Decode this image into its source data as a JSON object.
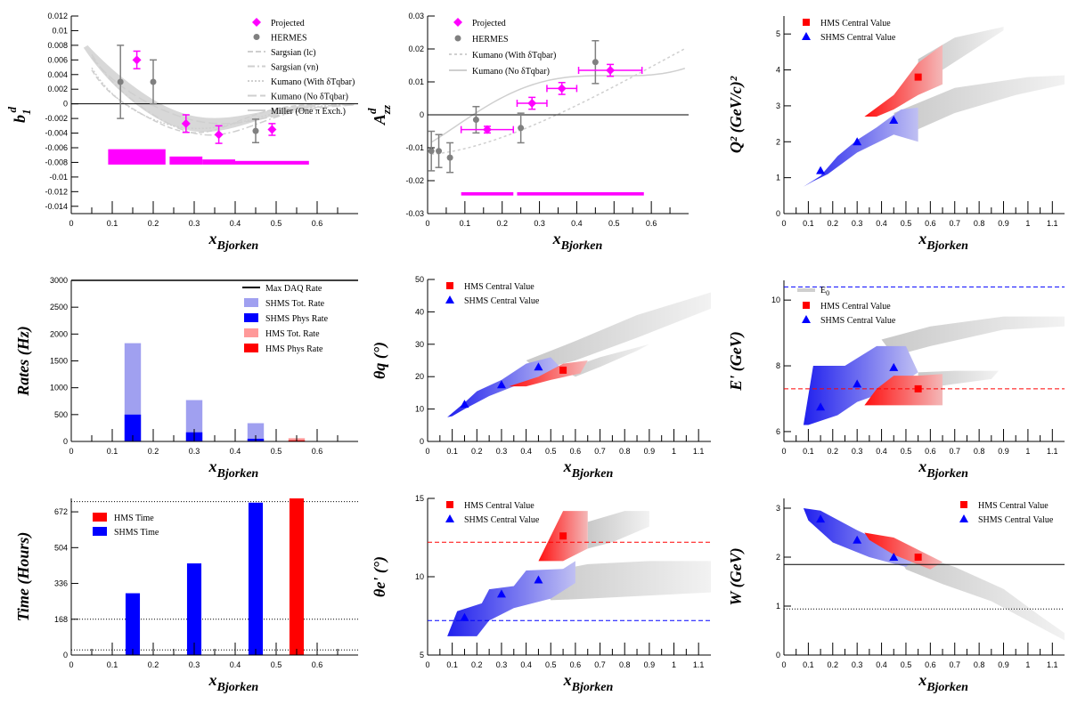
{
  "colors": {
    "projected": "#ff00ff",
    "hermes": "#808080",
    "model": "#cfcfcf",
    "hms": "#ff0000",
    "shms": "#0000ff",
    "hms_light": "#ff9999",
    "shms_light": "#a0a0f0",
    "band": "#d8d8d8"
  },
  "chart_data": [
    {
      "id": "b1d",
      "type": "scatter",
      "xlabel_main": "x",
      "xlabel_sub": "Bjorken",
      "ylabel_main": "b",
      "ylabel_sub": "1",
      "ylabel_sup": "d",
      "xlim": [
        0,
        0.7
      ],
      "ylim": [
        -0.015,
        0.012
      ],
      "xticks": [
        "0",
        "0.1",
        "0.2",
        "0.3",
        "0.4",
        "0.5",
        "0.6"
      ],
      "yticks": [
        "0.012",
        "0.01",
        "0.008",
        "0.006",
        "0.004",
        "0.002",
        "0",
        "-0.002",
        "-0.004",
        "-0.006",
        "-0.008",
        "-0.01",
        "-0.012",
        "-0.014"
      ],
      "ytick_values": [
        0.012,
        0.01,
        0.008,
        0.006,
        0.004,
        0.002,
        0,
        -0.002,
        -0.004,
        -0.006,
        -0.008,
        -0.01,
        -0.012,
        -0.014
      ],
      "legend": [
        "Projected",
        "HERMES",
        "Sargsian (lc)",
        "Sargsian (vn)",
        "Kumano (With δTqbar)",
        "Kumano (No δTqbar)",
        "Miller (One π Exch.)"
      ],
      "series": [
        {
          "name": "Projected",
          "x": [
            0.16,
            0.28,
            0.36,
            0.49
          ],
          "y": [
            0.006,
            -0.0027,
            -0.0042,
            -0.0035
          ],
          "yerr": [
            0.0012,
            0.0012,
            0.0012,
            0.0008
          ]
        },
        {
          "name": "HERMES",
          "x": [
            0.12,
            0.2,
            0.45
          ],
          "y": [
            0.003,
            0.003,
            -0.0037
          ],
          "yerr": [
            0.005,
            0.003,
            0.0016
          ]
        }
      ],
      "sys_bars": [
        {
          "x0": 0.09,
          "x1": 0.23,
          "y0": -0.0083,
          "y1": -0.0062
        },
        {
          "x0": 0.24,
          "x1": 0.32,
          "y0": -0.0083,
          "y1": -0.0072
        },
        {
          "x0": 0.32,
          "x1": 0.4,
          "y0": -0.0083,
          "y1": -0.0076
        },
        {
          "x0": 0.4,
          "x1": 0.58,
          "y0": -0.0083,
          "y1": -0.0078
        }
      ]
    },
    {
      "id": "azzd",
      "type": "scatter",
      "xlabel_main": "x",
      "xlabel_sub": "Bjorken",
      "ylabel_main": "A",
      "ylabel_sub": "zz",
      "ylabel_sup": "d",
      "xlim": [
        0,
        0.7
      ],
      "ylim": [
        -0.03,
        0.03
      ],
      "xticks": [
        "0",
        "0.1",
        "0.2",
        "0.3",
        "0.4",
        "0.5",
        "0.6"
      ],
      "yticks": [
        "0.03",
        "0.02",
        "0.01",
        "0",
        "-0.01",
        "-0.02",
        "-0.03"
      ],
      "ytick_values": [
        0.03,
        0.02,
        0.01,
        0,
        -0.01,
        -0.02,
        -0.03
      ],
      "legend": [
        "Projected",
        "HERMES",
        "Kumano (With δTqbar)",
        "Kumano (No δTqbar)"
      ],
      "series": [
        {
          "name": "Projected",
          "x": [
            0.16,
            0.28,
            0.36,
            0.49
          ],
          "y": [
            -0.0045,
            0.0035,
            0.008,
            0.0135
          ],
          "xerr": [
            0.07,
            0.04,
            0.04,
            0.085
          ],
          "yerr": [
            0.001,
            0.0018,
            0.0018,
            0.0018
          ]
        },
        {
          "name": "HERMES",
          "x": [
            0.01,
            0.03,
            0.06,
            0.13,
            0.25,
            0.45
          ],
          "y": [
            -0.011,
            -0.011,
            -0.013,
            -0.0015,
            -0.004,
            0.016
          ],
          "yerr": [
            0.006,
            0.005,
            0.0045,
            0.004,
            0.0045,
            0.0065
          ]
        }
      ],
      "sys_bars": [
        {
          "x0": 0.09,
          "x1": 0.23,
          "y0": -0.0245,
          "y1": -0.0235
        },
        {
          "x0": 0.24,
          "x1": 0.58,
          "y0": -0.0245,
          "y1": -0.0235
        }
      ]
    },
    {
      "id": "q2",
      "type": "scatter",
      "xlabel_main": "x",
      "xlabel_sub": "Bjorken",
      "ylabel_text": "Q² (GeV/c)²",
      "xlim": [
        0,
        1.15
      ],
      "ylim": [
        0,
        5.5
      ],
      "xticks": [
        "0",
        "0.1",
        "0.2",
        "0.3",
        "0.4",
        "0.5",
        "0.6",
        "0.7",
        "0.8",
        "0.9",
        "1",
        "1.1"
      ],
      "yticks": [
        "0",
        "1",
        "2",
        "3",
        "4",
        "5"
      ],
      "ytick_values": [
        0,
        1,
        2,
        3,
        4,
        5
      ],
      "legend": [
        "HMS Central Value",
        "SHMS Central Value"
      ],
      "series": [
        {
          "name": "HMS Central Value",
          "x": [
            0.55
          ],
          "y": [
            3.8
          ]
        },
        {
          "name": "SHMS Central Value",
          "x": [
            0.15,
            0.3,
            0.45
          ],
          "y": [
            1.2,
            2.0,
            2.6
          ]
        }
      ]
    },
    {
      "id": "rates",
      "type": "bar",
      "xlabel_main": "x",
      "xlabel_sub": "Bjorken",
      "ylabel_text": "Rates (Hz)",
      "xlim": [
        0,
        0.7
      ],
      "ylim": [
        0,
        3000
      ],
      "xticks": [
        "0",
        "0.1",
        "0.2",
        "0.3",
        "0.4",
        "0.5",
        "0.6"
      ],
      "yticks": [
        "0",
        "500",
        "1000",
        "1500",
        "2000",
        "2500",
        "3000"
      ],
      "ytick_values": [
        0,
        500,
        1000,
        1500,
        2000,
        2500,
        3000
      ],
      "legend": [
        "Max DAQ Rate",
        "SHMS Tot. Rate",
        "SHMS Phys Rate",
        "HMS Tot. Rate",
        "HMS Phys Rate"
      ],
      "max_daq_rate": 3000,
      "bars": [
        {
          "series": "SHMS Tot. Rate",
          "x": 0.15,
          "value": 1830
        },
        {
          "series": "SHMS Phys Rate",
          "x": 0.15,
          "value": 500
        },
        {
          "series": "SHMS Tot. Rate",
          "x": 0.3,
          "value": 770
        },
        {
          "series": "SHMS Phys Rate",
          "x": 0.3,
          "value": 170
        },
        {
          "series": "SHMS Tot. Rate",
          "x": 0.45,
          "value": 340
        },
        {
          "series": "SHMS Phys Rate",
          "x": 0.45,
          "value": 50
        },
        {
          "series": "HMS Tot. Rate",
          "x": 0.55,
          "value": 60
        },
        {
          "series": "HMS Phys Rate",
          "x": 0.55,
          "value": 20
        }
      ]
    },
    {
      "id": "thetaq",
      "type": "scatter",
      "xlabel_main": "x",
      "xlabel_sub": "Bjorken",
      "ylabel_text": "θq (°)",
      "xlim": [
        0,
        1.15
      ],
      "ylim": [
        0,
        50
      ],
      "xticks": [
        "0",
        "0.1",
        "0.2",
        "0.3",
        "0.4",
        "0.5",
        "0.6",
        "0.7",
        "0.8",
        "0.9",
        "1",
        "1.1"
      ],
      "yticks": [
        "0",
        "10",
        "20",
        "30",
        "40",
        "50"
      ],
      "ytick_values": [
        0,
        10,
        20,
        30,
        40,
        50
      ],
      "legend": [
        "HMS Central Value",
        "SHMS Central Value"
      ],
      "series": [
        {
          "name": "HMS Central Value",
          "x": [
            0.55
          ],
          "y": [
            22
          ]
        },
        {
          "name": "SHMS Central Value",
          "x": [
            0.15,
            0.3,
            0.45
          ],
          "y": [
            11.5,
            17.5,
            23
          ]
        }
      ]
    },
    {
      "id": "eprime",
      "type": "scatter",
      "xlabel_main": "x",
      "xlabel_sub": "Bjorken",
      "ylabel_text": "E' (GeV)",
      "xlim": [
        0,
        1.15
      ],
      "ylim": [
        5.7,
        10.6
      ],
      "xticks": [
        "0",
        "0.1",
        "0.2",
        "0.3",
        "0.4",
        "0.5",
        "0.6",
        "0.7",
        "0.8",
        "0.9",
        "1",
        "1.1"
      ],
      "yticks": [
        "6",
        "8",
        "10"
      ],
      "ytick_values": [
        6,
        8,
        10
      ],
      "legend": [
        "E0",
        "HMS Central Value",
        "SHMS Central Value"
      ],
      "e0": 10.4,
      "hms_line": 7.3,
      "series": [
        {
          "name": "HMS Central Value",
          "x": [
            0.55
          ],
          "y": [
            7.3
          ]
        },
        {
          "name": "SHMS Central Value",
          "x": [
            0.15,
            0.3,
            0.45
          ],
          "y": [
            6.75,
            7.45,
            7.95
          ]
        }
      ]
    },
    {
      "id": "time",
      "type": "bar",
      "xlabel_main": "x",
      "xlabel_sub": "Bjorken",
      "ylabel_text": "Time (Hours)",
      "xlim": [
        0,
        0.7
      ],
      "ylim": [
        0,
        735
      ],
      "xticks": [
        "0",
        "0.1",
        "0.2",
        "0.3",
        "0.4",
        "0.5",
        "0.6"
      ],
      "yticks": [
        "0",
        "168",
        "336",
        "504",
        "672"
      ],
      "ytick_values": [
        0,
        168,
        336,
        504,
        672
      ],
      "legend": [
        "HMS Time",
        "SHMS Time"
      ],
      "ref_lines": [
        24,
        168,
        720
      ],
      "bars": [
        {
          "series": "SHMS Time",
          "x": 0.15,
          "value": 290
        },
        {
          "series": "SHMS Time",
          "x": 0.3,
          "value": 430
        },
        {
          "series": "SHMS Time",
          "x": 0.45,
          "value": 715
        },
        {
          "series": "HMS Time",
          "x": 0.55,
          "value": 735
        }
      ]
    },
    {
      "id": "thetae",
      "type": "scatter",
      "xlabel_main": "x",
      "xlabel_sub": "Bjorken",
      "ylabel_text": "θe' (°)",
      "xlim": [
        0,
        1.15
      ],
      "ylim": [
        5,
        15
      ],
      "xticks": [
        "0",
        "0.1",
        "0.2",
        "0.3",
        "0.4",
        "0.5",
        "0.6",
        "0.7",
        "0.8",
        "0.9",
        "1",
        "1.1"
      ],
      "yticks": [
        "5",
        "10",
        "15"
      ],
      "ytick_values": [
        5,
        10,
        15
      ],
      "legend": [
        "HMS Central Value",
        "SHMS Central Value"
      ],
      "hms_line": 12.2,
      "shms_line": 7.2,
      "series": [
        {
          "name": "HMS Central Value",
          "x": [
            0.55
          ],
          "y": [
            12.6
          ]
        },
        {
          "name": "SHMS Central Value",
          "x": [
            0.15,
            0.3,
            0.45
          ],
          "y": [
            7.4,
            8.9,
            9.8
          ]
        }
      ]
    },
    {
      "id": "w",
      "type": "scatter",
      "xlabel_main": "x",
      "xlabel_sub": "Bjorken",
      "ylabel_text": "W (GeV)",
      "xlim": [
        0,
        1.15
      ],
      "ylim": [
        0,
        3.2
      ],
      "xticks": [
        "0",
        "0.1",
        "0.2",
        "0.3",
        "0.4",
        "0.5",
        "0.6",
        "0.7",
        "0.8",
        "0.9",
        "1",
        "1.1"
      ],
      "yticks": [
        "0",
        "1",
        "2",
        "3"
      ],
      "ytick_values": [
        0,
        1,
        2,
        3
      ],
      "legend": [
        "HMS Central Value",
        "SHMS Central Value"
      ],
      "solid_line": 1.85,
      "dotted_line": 0.94,
      "series": [
        {
          "name": "HMS Central Value",
          "x": [
            0.55
          ],
          "y": [
            2.0
          ]
        },
        {
          "name": "SHMS Central Value",
          "x": [
            0.15,
            0.3,
            0.45
          ],
          "y": [
            2.78,
            2.35,
            2.0
          ]
        }
      ]
    }
  ]
}
